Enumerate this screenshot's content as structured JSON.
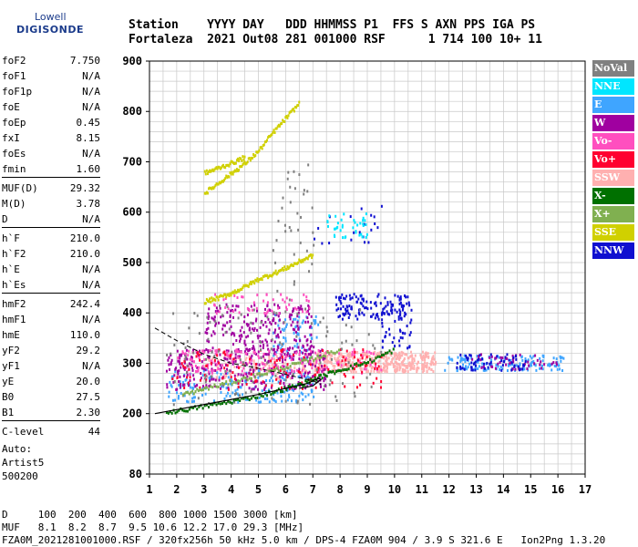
{
  "logo": {
    "line1": "Lowell",
    "line2": "DIGISONDE"
  },
  "header": {
    "line1": "Station    YYYY DAY   DDD HHMMSS P1  FFS S AXN PPS IGA PS",
    "line2": "Fortaleza  2021 Out08 281 001000 RSF      1 714 100 10+ 11"
  },
  "params": [
    {
      "k": "foF2",
      "v": "7.750"
    },
    {
      "k": "foF1",
      "v": "N/A"
    },
    {
      "k": "foF1p",
      "v": "N/A"
    },
    {
      "k": "foE",
      "v": "N/A"
    },
    {
      "k": "foEp",
      "v": "0.45"
    },
    {
      "k": "fxI",
      "v": "8.15"
    },
    {
      "k": "foEs",
      "v": "N/A"
    },
    {
      "k": "fmin",
      "v": "1.60"
    },
    {
      "sep": true
    },
    {
      "k": "MUF(D)",
      "v": "29.32"
    },
    {
      "k": "M(D)",
      "v": "3.78"
    },
    {
      "k": "D",
      "v": "N/A"
    },
    {
      "sep": true
    },
    {
      "k": "h`F",
      "v": "210.0"
    },
    {
      "k": "h`F2",
      "v": "210.0"
    },
    {
      "k": "h`E",
      "v": "N/A"
    },
    {
      "k": "h`Es",
      "v": "N/A"
    },
    {
      "sep": true
    },
    {
      "k": "hmF2",
      "v": "242.4"
    },
    {
      "k": "hmF1",
      "v": "N/A"
    },
    {
      "k": "hmE",
      "v": "110.0"
    },
    {
      "k": "yF2",
      "v": "29.2"
    },
    {
      "k": "yF1",
      "v": "N/A"
    },
    {
      "k": "yE",
      "v": "20.0"
    },
    {
      "k": "B0",
      "v": "27.5"
    },
    {
      "k": "B1",
      "v": "2.30"
    },
    {
      "sep": true
    },
    {
      "k": "C-level",
      "v": "44"
    }
  ],
  "auto": {
    "l1": "Auto:",
    "l2": "Artist5",
    "l3": "500200"
  },
  "legend": [
    {
      "label": "NoVal",
      "color": "#808080"
    },
    {
      "label": "NNE",
      "color": "#00e6ff"
    },
    {
      "label": "E",
      "color": "#3fa5ff"
    },
    {
      "label": "W",
      "color": "#a000a0"
    },
    {
      "label": "Vo-",
      "color": "#ff4fbf"
    },
    {
      "label": "Vo+",
      "color": "#ff0030"
    },
    {
      "label": "SSW",
      "color": "#ffb0b0"
    },
    {
      "label": "X-",
      "color": "#007000"
    },
    {
      "label": "X+",
      "color": "#80b050"
    },
    {
      "label": "SSE",
      "color": "#d0d000"
    },
    {
      "label": "NNW",
      "color": "#1010d0"
    }
  ],
  "footer": {
    "l1": "D     100  200  400  600  800 1000 1500 3000 [km]",
    "l2": "MUF   8.1  8.2  8.7  9.5 10.6 12.2 17.0 29.3 [MHz]",
    "l3": "FZA0M_2021281001000.RSF / 320fx256h 50 kHz 5.0 km / DPS-4 FZA0M 904 / 3.9 S 321.6 E   Ion2Png 1.3.20"
  },
  "chart_data": {
    "type": "scatter",
    "xlim": [
      1,
      17
    ],
    "ylim": [
      80,
      900
    ],
    "xticks": [
      1,
      2,
      3,
      4,
      5,
      6,
      7,
      8,
      9,
      10,
      11,
      12,
      13,
      14,
      15,
      16,
      17
    ],
    "yticks": [
      80,
      200,
      300,
      400,
      500,
      600,
      700,
      800,
      900
    ],
    "grid": true,
    "clusters": [
      {
        "color": "#ffb0b0",
        "x": [
          7.0,
          11.5
        ],
        "y": [
          285,
          325
        ],
        "n": 420
      },
      {
        "color": "#ffb0b0",
        "x": [
          3.0,
          7.0
        ],
        "y": [
          270,
          320
        ],
        "n": 120
      },
      {
        "color": "#3fa5ff",
        "x": [
          1.6,
          7.0
        ],
        "y": [
          225,
          290
        ],
        "n": 180
      },
      {
        "color": "#3fa5ff",
        "x": [
          11.8,
          16.2
        ],
        "y": [
          288,
          318
        ],
        "n": 140
      },
      {
        "color": "#3fa5ff",
        "x": [
          5.5,
          7.2
        ],
        "y": [
          310,
          400
        ],
        "n": 70
      },
      {
        "color": "#a000a0",
        "x": [
          1.6,
          7.5
        ],
        "y": [
          250,
          330
        ],
        "n": 300
      },
      {
        "color": "#a000a0",
        "x": [
          3.0,
          7.0
        ],
        "y": [
          320,
          420
        ],
        "n": 220
      },
      {
        "color": "#a000a0",
        "x": [
          12.5,
          16.0
        ],
        "y": [
          290,
          320
        ],
        "n": 50
      },
      {
        "color": "#ff4fbf",
        "x": [
          2.0,
          9.5
        ],
        "y": [
          280,
          330
        ],
        "n": 160
      },
      {
        "color": "#ff4fbf",
        "x": [
          3.0,
          7.0
        ],
        "y": [
          400,
          440
        ],
        "n": 50
      },
      {
        "color": "#ff0030",
        "x": [
          1.8,
          9.5
        ],
        "y": [
          250,
          330
        ],
        "n": 130
      },
      {
        "color": "#1010d0",
        "x": [
          7.8,
          10.4
        ],
        "y": [
          390,
          440
        ],
        "n": 110
      },
      {
        "color": "#1010d0",
        "x": [
          9.5,
          10.6
        ],
        "y": [
          330,
          440
        ],
        "n": 60
      },
      {
        "color": "#1010d0",
        "x": [
          12.2,
          14.8
        ],
        "y": [
          288,
          320
        ],
        "n": 60
      },
      {
        "color": "#1010d0",
        "x": [
          7.0,
          9.5
        ],
        "y": [
          530,
          620
        ],
        "n": 20
      },
      {
        "color": "#00e6ff",
        "x": [
          7.5,
          9.0
        ],
        "y": [
          550,
          600
        ],
        "n": 40
      },
      {
        "color": "#808080",
        "x": [
          1.6,
          9.5
        ],
        "y": [
          220,
          420
        ],
        "n": 120
      },
      {
        "color": "#808080",
        "x": [
          5.5,
          7.0
        ],
        "y": [
          380,
          700
        ],
        "n": 40
      }
    ],
    "traces": [
      {
        "color": "#007000",
        "points": [
          [
            1.6,
            205
          ],
          [
            2.5,
            212
          ],
          [
            3.5,
            222
          ],
          [
            4.5,
            232
          ],
          [
            5.5,
            245
          ],
          [
            6.5,
            260
          ],
          [
            7.2,
            275
          ],
          [
            8.0,
            290
          ],
          [
            9.0,
            305
          ],
          [
            10.0,
            330
          ]
        ]
      },
      {
        "color": "#80b050",
        "points": [
          [
            2.2,
            240
          ],
          [
            3.0,
            252
          ],
          [
            4.0,
            265
          ],
          [
            5.0,
            280
          ],
          [
            6.0,
            295
          ],
          [
            7.0,
            312
          ],
          [
            8.0,
            330
          ]
        ]
      },
      {
        "color": "#d0d000",
        "points": [
          [
            3.0,
            640
          ],
          [
            3.5,
            660
          ],
          [
            4.0,
            680
          ],
          [
            4.5,
            700
          ],
          [
            5.0,
            725
          ],
          [
            5.5,
            760
          ],
          [
            6.0,
            790
          ],
          [
            6.5,
            820
          ]
        ]
      },
      {
        "color": "#d0d000",
        "points": [
          [
            3.0,
            425
          ],
          [
            3.5,
            432
          ],
          [
            4.0,
            442
          ],
          [
            4.5,
            455
          ],
          [
            5.0,
            470
          ],
          [
            5.5,
            480
          ],
          [
            6.0,
            492
          ],
          [
            6.5,
            505
          ],
          [
            7.0,
            518
          ]
        ]
      },
      {
        "color": "#d0d000",
        "points": [
          [
            3.0,
            680
          ],
          [
            3.5,
            690
          ],
          [
            4.0,
            700
          ],
          [
            4.5,
            712
          ]
        ]
      }
    ],
    "profile_solid": [
      [
        1.2,
        200
      ],
      [
        2.0,
        208
      ],
      [
        3.0,
        218
      ],
      [
        4.0,
        228
      ],
      [
        5.0,
        238
      ],
      [
        6.0,
        250
      ],
      [
        6.8,
        260
      ],
      [
        7.2,
        270
      ],
      [
        7.3,
        268
      ],
      [
        7.0,
        255
      ],
      [
        6.5,
        250
      ]
    ],
    "profile_dashed": [
      [
        1.2,
        370
      ],
      [
        2.0,
        345
      ],
      [
        3.0,
        318
      ],
      [
        4.0,
        300
      ],
      [
        5.0,
        290
      ],
      [
        6.0,
        278
      ],
      [
        7.0,
        265
      ],
      [
        7.3,
        258
      ]
    ]
  }
}
